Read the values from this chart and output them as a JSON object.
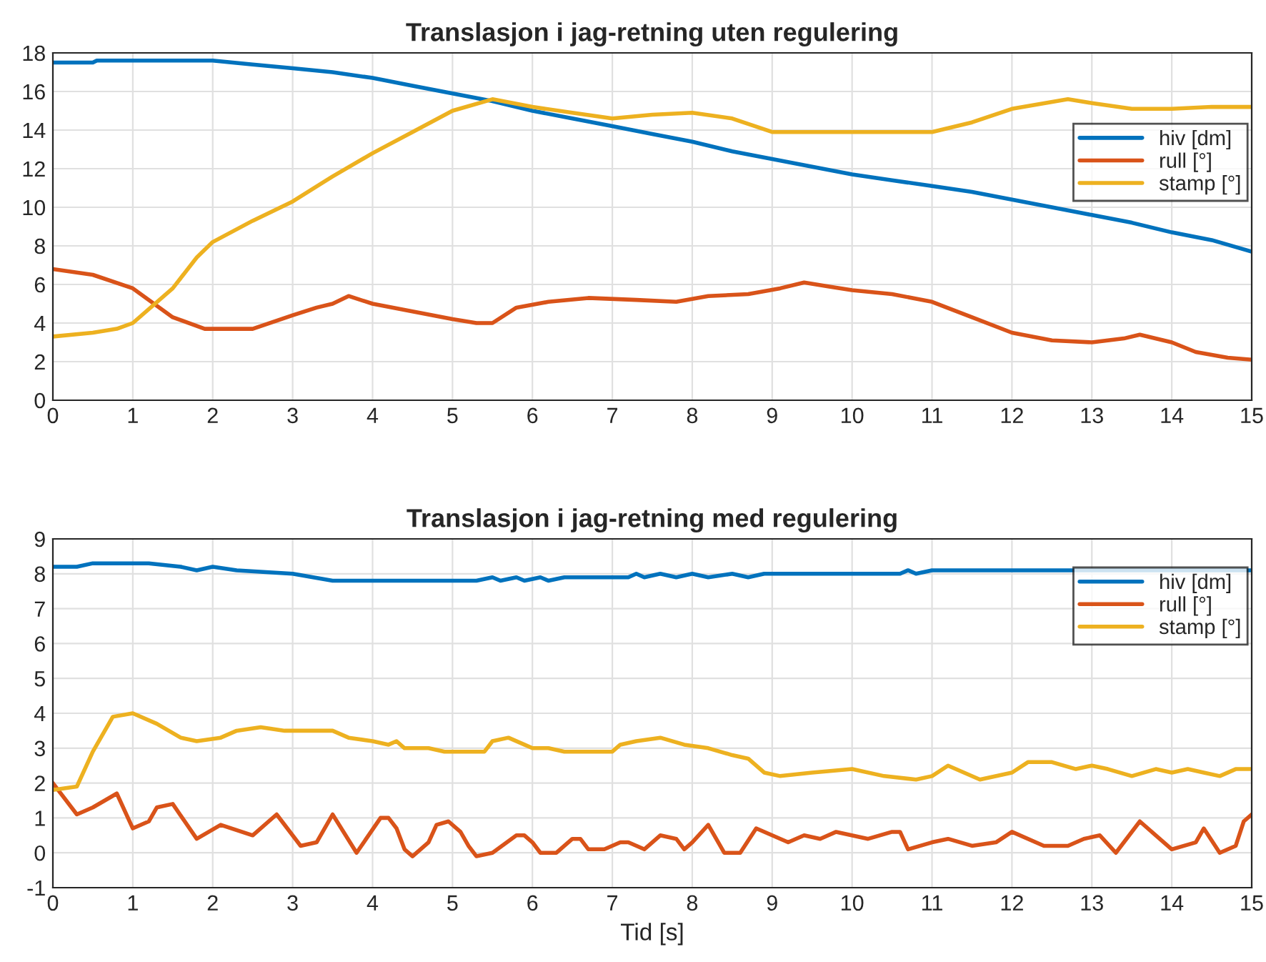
{
  "chart_data": [
    {
      "type": "line",
      "title": "Translasjon i jag-retning uten regulering",
      "xlim": [
        0,
        15
      ],
      "xticks": [
        0,
        1,
        2,
        3,
        4,
        5,
        6,
        7,
        8,
        9,
        10,
        11,
        12,
        13,
        14,
        15
      ],
      "ylim": [
        0,
        18
      ],
      "yticks": [
        0,
        2,
        4,
        6,
        8,
        10,
        12,
        14,
        16,
        18
      ],
      "grid": true,
      "legend": "right",
      "series": [
        {
          "name": "hiv [dm]",
          "color": "#0072bd",
          "x": [
            0,
            0.5,
            0.55,
            2,
            2.5,
            3,
            3.5,
            4,
            4.5,
            5,
            5.5,
            6,
            6.5,
            7,
            7.5,
            8,
            8.5,
            9,
            9.5,
            10,
            10.5,
            11,
            11.5,
            12,
            12.5,
            13,
            13.5,
            14,
            14.5,
            15
          ],
          "values": [
            17.5,
            17.5,
            17.6,
            17.6,
            17.4,
            17.2,
            17.0,
            16.7,
            16.3,
            15.9,
            15.5,
            15.0,
            14.6,
            14.2,
            13.8,
            13.4,
            12.9,
            12.5,
            12.1,
            11.7,
            11.4,
            11.1,
            10.8,
            10.4,
            10.0,
            9.6,
            9.2,
            8.7,
            8.3,
            7.7
          ]
        },
        {
          "name": "rull [°]",
          "color": "#d95319",
          "x": [
            0,
            0.5,
            1,
            1.5,
            1.9,
            2.5,
            3,
            3.3,
            3.5,
            3.7,
            4,
            4.5,
            5,
            5.3,
            5.5,
            5.8,
            6.2,
            6.7,
            7.3,
            7.8,
            8.2,
            8.7,
            9.1,
            9.4,
            9.7,
            10,
            10.5,
            11,
            11.5,
            12,
            12.5,
            13,
            13.4,
            13.6,
            14,
            14.3,
            14.7,
            15
          ],
          "values": [
            6.8,
            6.5,
            5.8,
            4.3,
            3.7,
            3.7,
            4.4,
            4.8,
            5.0,
            5.4,
            5.0,
            4.6,
            4.2,
            4.0,
            4.0,
            4.8,
            5.1,
            5.3,
            5.2,
            5.1,
            5.4,
            5.5,
            5.8,
            6.1,
            5.9,
            5.7,
            5.5,
            5.1,
            4.3,
            3.5,
            3.1,
            3.0,
            3.2,
            3.4,
            3.0,
            2.5,
            2.2,
            2.1
          ]
        },
        {
          "name": "stamp [°]",
          "color": "#edb120",
          "x": [
            0,
            0.5,
            0.8,
            1,
            1.5,
            1.8,
            2,
            2.5,
            3,
            3.5,
            4,
            4.5,
            5,
            5.5,
            6,
            6.5,
            7,
            7.5,
            8,
            8.5,
            9,
            9.5,
            10,
            10.5,
            11,
            11.5,
            12,
            12.7,
            13,
            13.5,
            14,
            14.5,
            15
          ],
          "values": [
            3.3,
            3.5,
            3.7,
            4.0,
            5.8,
            7.4,
            8.2,
            9.3,
            10.3,
            11.6,
            12.8,
            13.9,
            15.0,
            15.6,
            15.2,
            14.9,
            14.6,
            14.8,
            14.9,
            14.6,
            13.9,
            13.9,
            13.9,
            13.9,
            13.9,
            14.4,
            15.1,
            15.6,
            15.4,
            15.1,
            15.1,
            15.2,
            15.2
          ]
        }
      ]
    },
    {
      "type": "line",
      "title": "Translasjon i jag-retning med regulering",
      "xlabel": "Tid [s]",
      "xlim": [
        0,
        15
      ],
      "xticks": [
        0,
        1,
        2,
        3,
        4,
        5,
        6,
        7,
        8,
        9,
        10,
        11,
        12,
        13,
        14,
        15
      ],
      "ylim": [
        -1,
        9
      ],
      "yticks": [
        -1,
        0,
        1,
        2,
        3,
        4,
        5,
        6,
        7,
        8,
        9
      ],
      "grid": true,
      "legend": "top right",
      "series": [
        {
          "name": "hiv [dm]",
          "color": "#0072bd",
          "x": [
            0,
            0.3,
            0.5,
            1.2,
            1.6,
            1.8,
            2,
            2.3,
            3,
            3.5,
            5.3,
            5.5,
            5.6,
            5.8,
            5.9,
            6.1,
            6.2,
            6.4,
            7.2,
            7.3,
            7.4,
            7.6,
            7.8,
            8,
            8.2,
            8.5,
            8.7,
            8.9,
            10.6,
            10.7,
            10.8,
            11,
            15
          ],
          "values": [
            8.2,
            8.2,
            8.3,
            8.3,
            8.2,
            8.1,
            8.2,
            8.1,
            8.0,
            7.8,
            7.8,
            7.9,
            7.8,
            7.9,
            7.8,
            7.9,
            7.8,
            7.9,
            7.9,
            8.0,
            7.9,
            8.0,
            7.9,
            8.0,
            7.9,
            8.0,
            7.9,
            8.0,
            8.0,
            8.1,
            8.0,
            8.1,
            8.1
          ]
        },
        {
          "name": "rull [°]",
          "color": "#d95319",
          "x": [
            0,
            0.3,
            0.5,
            0.8,
            1,
            1.2,
            1.3,
            1.5,
            1.8,
            2.1,
            2.5,
            2.8,
            3.1,
            3.3,
            3.5,
            3.8,
            4.1,
            4.2,
            4.3,
            4.4,
            4.5,
            4.7,
            4.8,
            4.95,
            5.1,
            5.2,
            5.3,
            5.5,
            5.8,
            5.9,
            6.0,
            6.1,
            6.3,
            6.5,
            6.6,
            6.7,
            6.9,
            7.1,
            7.2,
            7.4,
            7.6,
            7.8,
            7.9,
            8.0,
            8.2,
            8.4,
            8.6,
            8.8,
            9.0,
            9.2,
            9.4,
            9.6,
            9.8,
            10.2,
            10.5,
            10.6,
            10.7,
            11.0,
            11.2,
            11.5,
            11.8,
            12.0,
            12.4,
            12.7,
            12.9,
            13.1,
            13.3,
            13.6,
            13.8,
            14.0,
            14.3,
            14.4,
            14.6,
            14.8,
            14.9,
            15
          ],
          "values": [
            2.0,
            1.1,
            1.3,
            1.7,
            0.7,
            0.9,
            1.3,
            1.4,
            0.4,
            0.8,
            0.5,
            1.1,
            0.2,
            0.3,
            1.1,
            0.0,
            1.0,
            1.0,
            0.7,
            0.1,
            -0.1,
            0.3,
            0.8,
            0.9,
            0.6,
            0.2,
            -0.1,
            0.0,
            0.5,
            0.5,
            0.3,
            0.0,
            0.0,
            0.4,
            0.4,
            0.1,
            0.1,
            0.3,
            0.3,
            0.1,
            0.5,
            0.4,
            0.1,
            0.3,
            0.8,
            0.0,
            0.0,
            0.7,
            0.5,
            0.3,
            0.5,
            0.4,
            0.6,
            0.4,
            0.6,
            0.6,
            0.1,
            0.3,
            0.4,
            0.2,
            0.3,
            0.6,
            0.2,
            0.2,
            0.4,
            0.5,
            0.0,
            0.9,
            0.5,
            0.1,
            0.3,
            0.7,
            0.0,
            0.2,
            0.9,
            1.1
          ]
        },
        {
          "name": "stamp [°]",
          "color": "#edb120",
          "x": [
            0,
            0.3,
            0.5,
            0.75,
            1,
            1.3,
            1.6,
            1.8,
            2.1,
            2.3,
            2.6,
            2.9,
            3.5,
            3.7,
            4,
            4.2,
            4.3,
            4.4,
            4.7,
            4.9,
            5.4,
            5.5,
            5.7,
            5.9,
            6.0,
            6.2,
            6.4,
            7.0,
            7.1,
            7.3,
            7.6,
            7.9,
            8.2,
            8.5,
            8.7,
            8.9,
            9.1,
            9.5,
            10.0,
            10.4,
            10.8,
            11.0,
            11.2,
            11.6,
            12.0,
            12.2,
            12.5,
            12.8,
            13.0,
            13.2,
            13.5,
            13.8,
            14.0,
            14.2,
            14.4,
            14.6,
            14.8,
            15
          ],
          "values": [
            1.8,
            1.9,
            2.9,
            3.9,
            4.0,
            3.7,
            3.3,
            3.2,
            3.3,
            3.5,
            3.6,
            3.5,
            3.5,
            3.3,
            3.2,
            3.1,
            3.2,
            3.0,
            3.0,
            2.9,
            2.9,
            3.2,
            3.3,
            3.1,
            3.0,
            3.0,
            2.9,
            2.9,
            3.1,
            3.2,
            3.3,
            3.1,
            3.0,
            2.8,
            2.7,
            2.3,
            2.2,
            2.3,
            2.4,
            2.2,
            2.1,
            2.2,
            2.5,
            2.1,
            2.3,
            2.6,
            2.6,
            2.4,
            2.5,
            2.4,
            2.2,
            2.4,
            2.3,
            2.4,
            2.3,
            2.2,
            2.4,
            2.4
          ]
        }
      ]
    }
  ]
}
